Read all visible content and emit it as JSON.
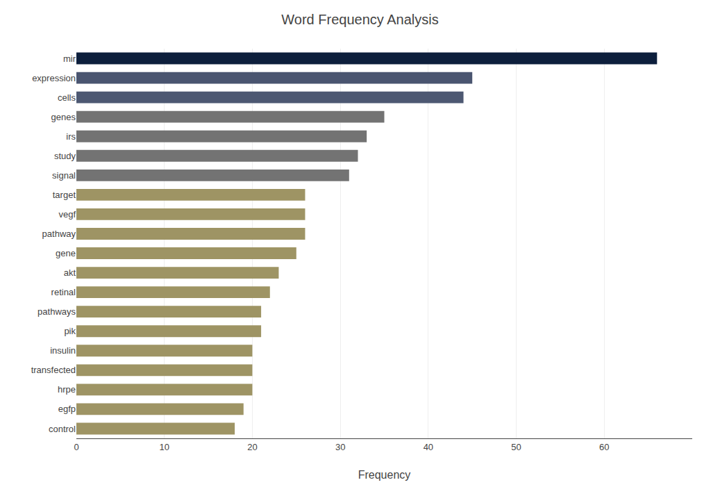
{
  "chart_data": {
    "type": "bar",
    "orientation": "horizontal",
    "title": "Word Frequency Analysis",
    "xlabel": "Frequency",
    "categories": [
      "mir",
      "expression",
      "cells",
      "genes",
      "irs",
      "study",
      "signal",
      "target",
      "vegf",
      "pathway",
      "gene",
      "akt",
      "retinal",
      "pathways",
      "pik",
      "insulin",
      "transfected",
      "hrpe",
      "egfp",
      "control"
    ],
    "values": [
      66,
      45,
      44,
      35,
      33,
      32,
      31,
      26,
      26,
      26,
      25,
      23,
      22,
      21,
      21,
      20,
      20,
      20,
      19,
      18
    ],
    "colors": [
      "#0d1f3c",
      "#4a5570",
      "#4d5872",
      "#737373",
      "#737373",
      "#737373",
      "#737373",
      "#9e9464",
      "#9e9464",
      "#9e9464",
      "#9e9464",
      "#9e9464",
      "#9e9464",
      "#9e9464",
      "#9e9464",
      "#9e9464",
      "#9e9464",
      "#9e9464",
      "#9e9464",
      "#9e9464"
    ],
    "xlim": [
      0,
      70
    ],
    "xticks": [
      0,
      10,
      20,
      30,
      40,
      50,
      60
    ],
    "grid": true
  }
}
